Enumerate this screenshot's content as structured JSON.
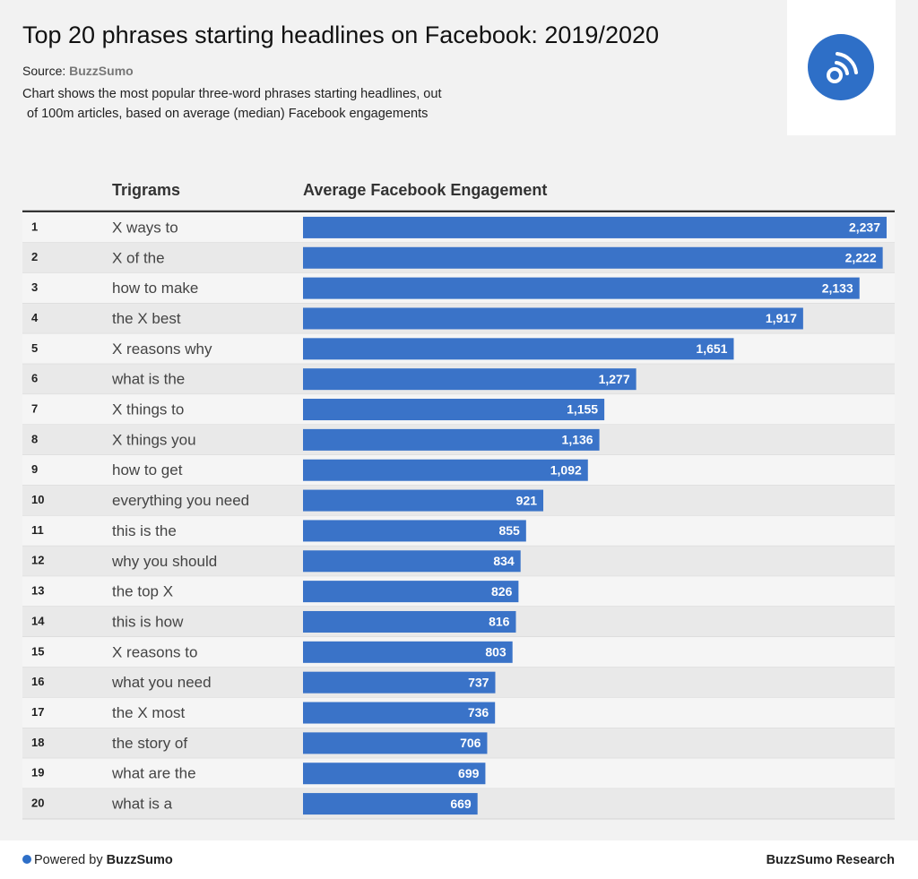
{
  "chart_data": {
    "type": "bar",
    "title": "Top 20 phrases starting headlines on Facebook: 2019/2020",
    "source_label": "Source:",
    "source": "BuzzSumo",
    "description": [
      "Chart shows the most popular three-word phrases starting headlines, out",
      "of 100m articles, based on average (median) Facebook engagements"
    ],
    "category_header": "Trigrams",
    "value_header": "Average Facebook Engagement",
    "color": "#3a73c8",
    "ranks": [
      1,
      2,
      3,
      4,
      5,
      6,
      7,
      8,
      9,
      10,
      11,
      12,
      13,
      14,
      15,
      16,
      17,
      18,
      19,
      20
    ],
    "categories": [
      "X ways to",
      "X of the",
      "how to make",
      "the X best",
      "X reasons why",
      "what is the",
      "X things to",
      "X things you",
      "how to get",
      "everything you need",
      "this is the",
      "why you should",
      "the top X",
      "this is how",
      "X reasons to",
      "what you need",
      "the X most",
      "the story of",
      "what are the",
      "what is a"
    ],
    "values": [
      2237,
      2222,
      2133,
      1917,
      1651,
      1277,
      1155,
      1136,
      1092,
      921,
      855,
      834,
      826,
      816,
      803,
      737,
      736,
      706,
      699,
      669
    ],
    "value_labels": [
      "2,237",
      "2,222",
      "2,133",
      "1,917",
      "1,651",
      "1,277",
      "1,155",
      "1,136",
      "1,092",
      "921",
      "855",
      "834",
      "826",
      "816",
      "803",
      "737",
      "736",
      "706",
      "699",
      "669"
    ]
  },
  "footer": {
    "powered_by": "Powered by",
    "brand": "BuzzSumo",
    "credit": "BuzzSumo Research"
  }
}
